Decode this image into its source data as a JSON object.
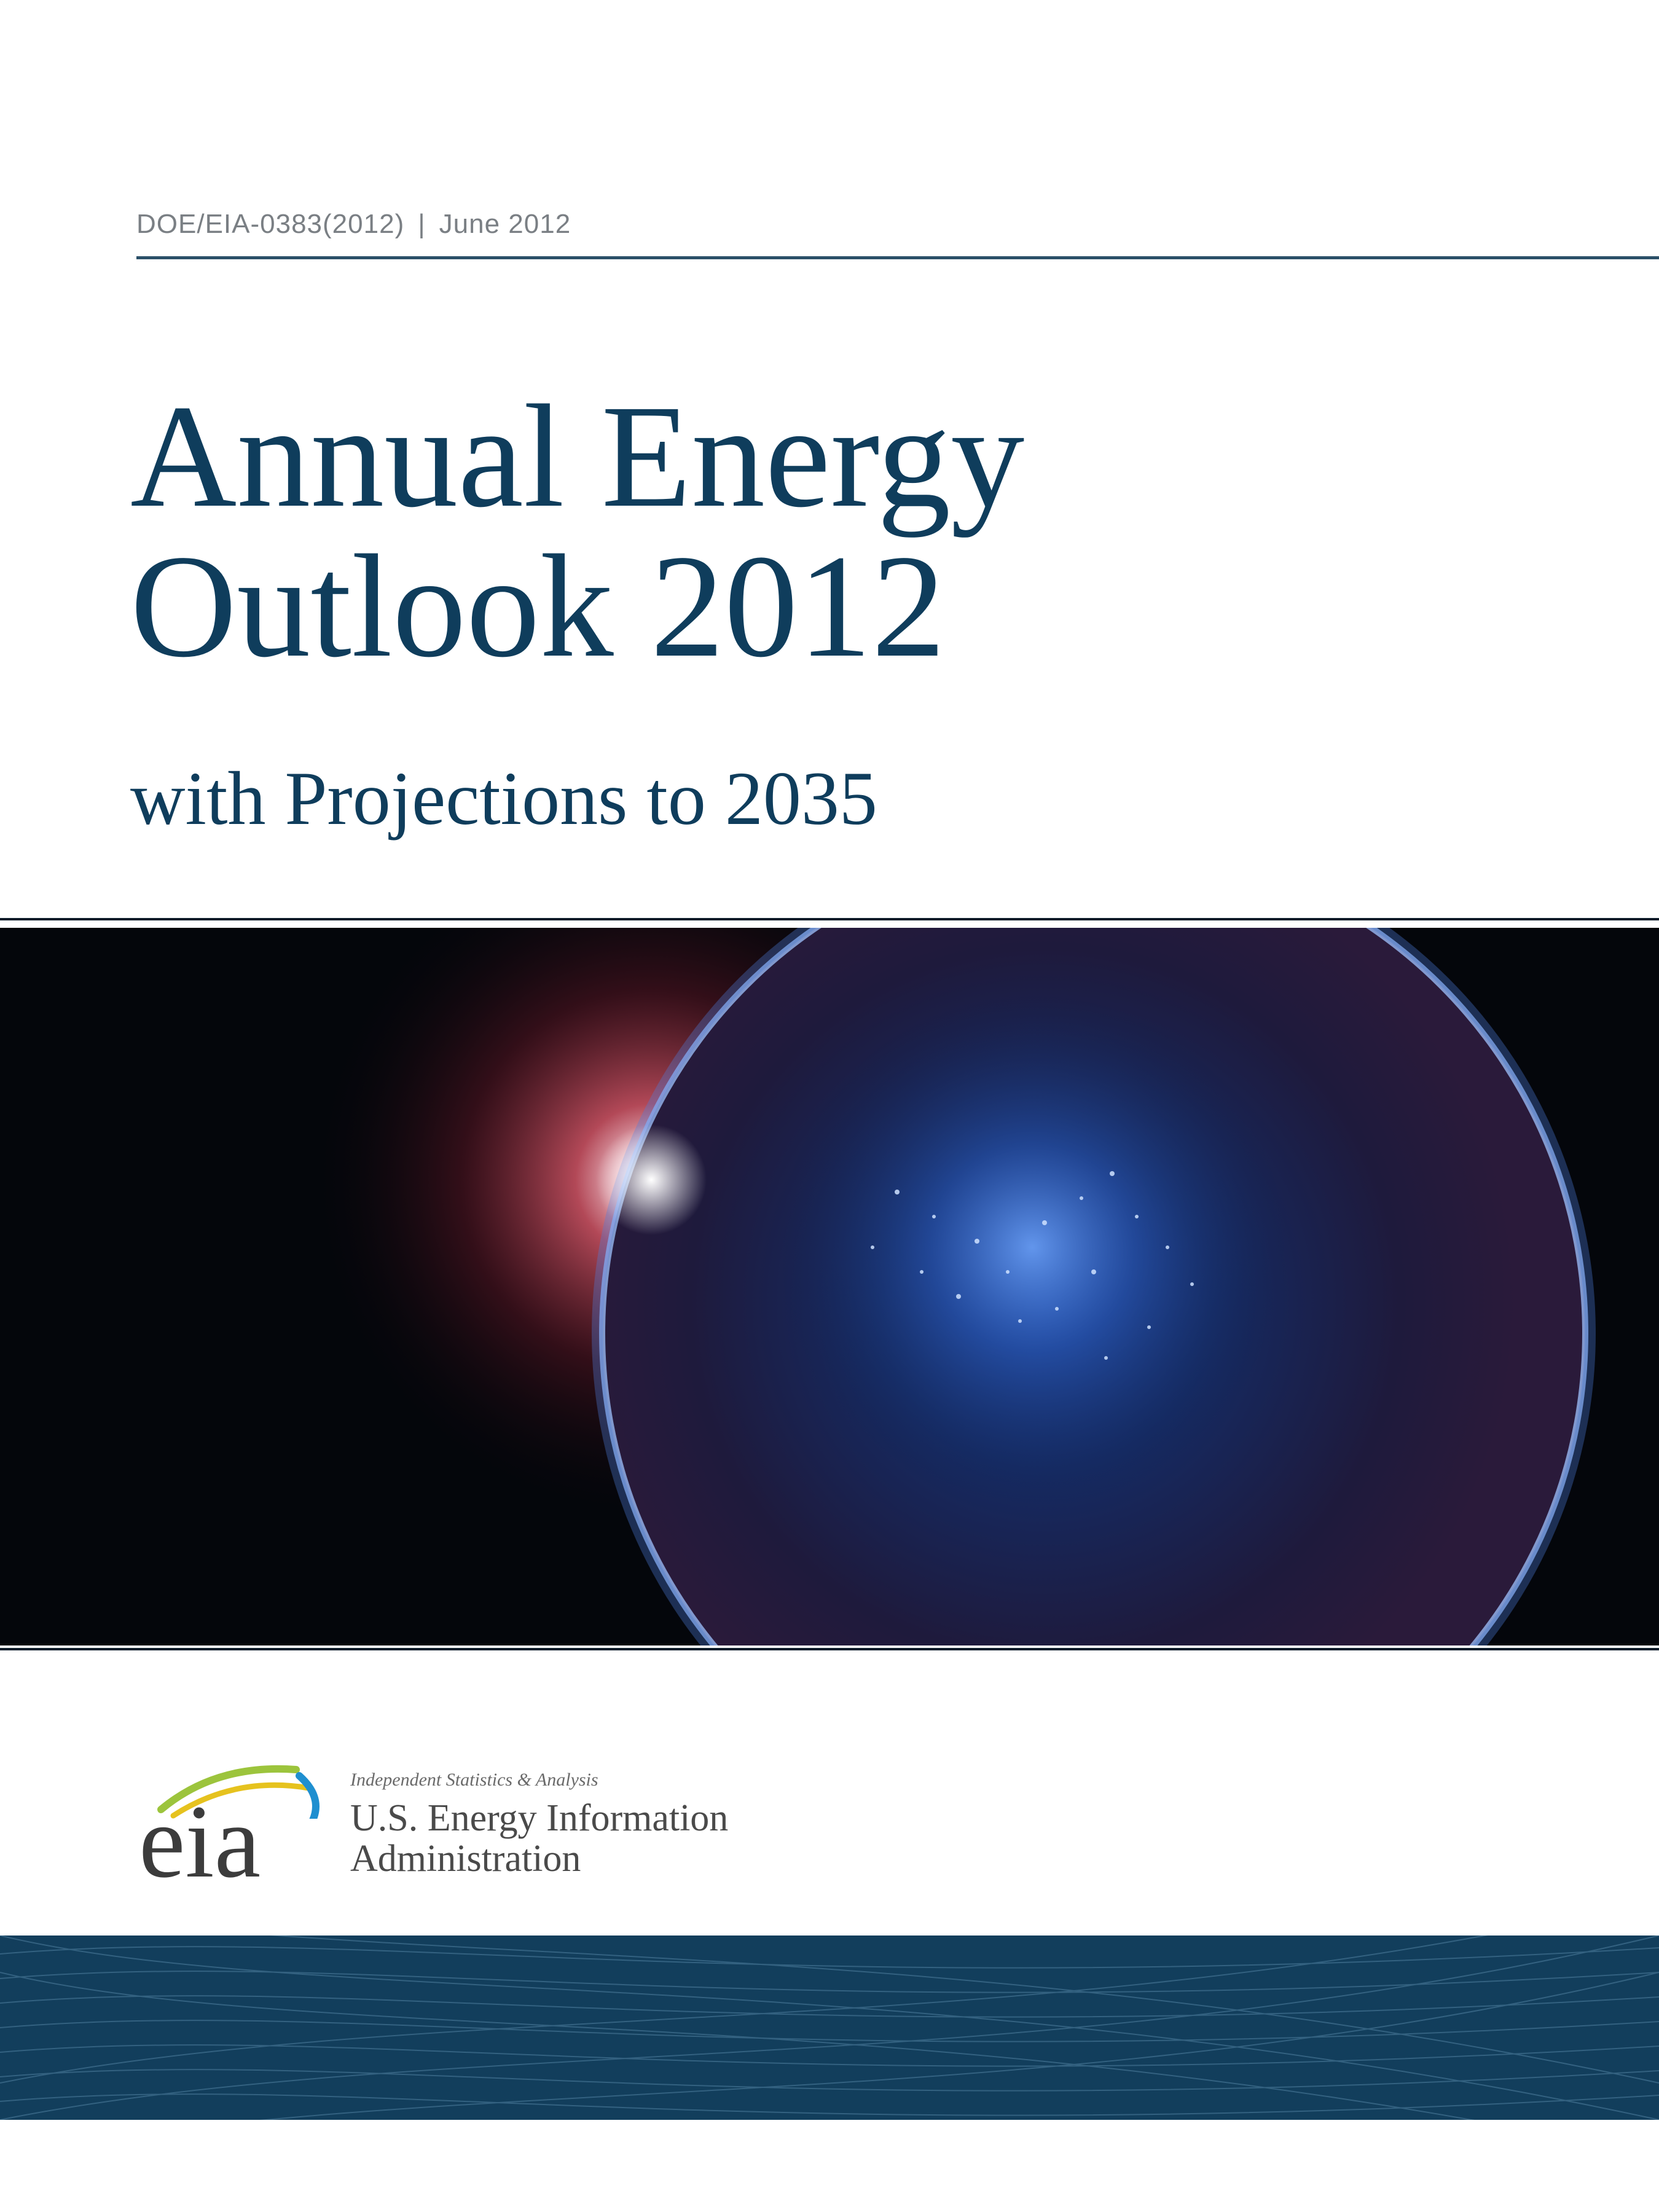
{
  "header": {
    "doc_number": "DOE/EIA-0383(2012)",
    "separator": "|",
    "date": "June 2012"
  },
  "title": {
    "line1": "Annual Energy",
    "line2": "Outlook 2012"
  },
  "subtitle": "with Projections to 2035",
  "logo": {
    "wordmark": "eia",
    "tagline": "Independent Statistics & Analysis",
    "agency_line1": "U.S. Energy Information",
    "agency_line2": "Administration"
  },
  "colors": {
    "title_blue": "#0f3d5c",
    "band_blue": "#123e5c",
    "rule": "#2b5068"
  },
  "image": {
    "description_icon": "earth-at-night-from-space"
  }
}
